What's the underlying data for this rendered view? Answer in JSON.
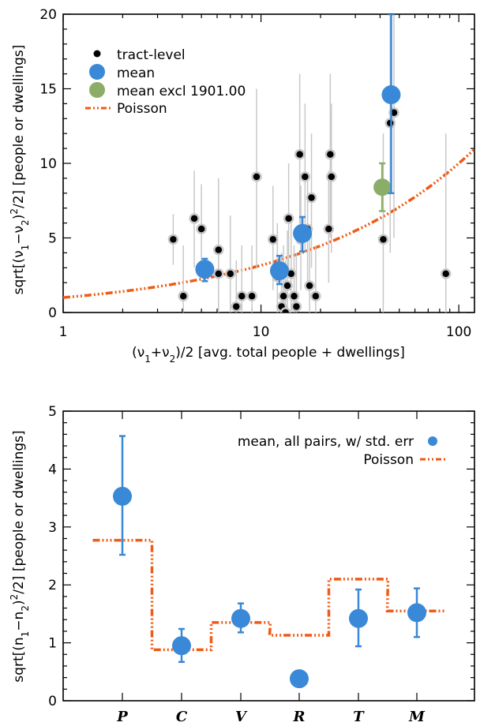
{
  "chart_data": [
    {
      "type": "scatter",
      "xlabel": "(ν₁+ν₂)/2 [avg. total people + dwellings]",
      "ylabel": "sqrt[(ν₁−ν₂)²/2] [people or dwellings]",
      "xscale": "log",
      "xlim": [
        1,
        120
      ],
      "ylim": [
        0,
        20
      ],
      "xticks": [
        {
          "value": 1,
          "label": "1"
        },
        {
          "value": 10,
          "label": "10"
        },
        {
          "value": 100,
          "label": "100"
        }
      ],
      "yticks": [
        {
          "value": 0,
          "label": "0"
        },
        {
          "value": 5,
          "label": "5"
        },
        {
          "value": 10,
          "label": "10"
        },
        {
          "value": 15,
          "label": "15"
        },
        {
          "value": 20,
          "label": "20"
        }
      ],
      "legend": {
        "placement": "top-left",
        "entries": [
          "tract-level",
          "mean",
          "mean excl 1901.00",
          "Poisson"
        ]
      },
      "colors": {
        "tract": "#000000",
        "mean": "#3a88d8",
        "excl": "#8cad68",
        "poisson": "#f05a14",
        "errbar": "#c8c8c8"
      },
      "series": [
        {
          "name": "tract-level",
          "points": [
            {
              "x": 3.6,
              "y": 4.9,
              "lo": 3.2,
              "hi": 6.6
            },
            {
              "x": 4.05,
              "y": 1.1,
              "lo": 0.0,
              "hi": 4.5
            },
            {
              "x": 4.6,
              "y": 6.3,
              "lo": 3.0,
              "hi": 9.5
            },
            {
              "x": 5.0,
              "y": 5.6,
              "lo": 2.5,
              "hi": 8.6
            },
            {
              "x": 6.1,
              "y": 4.2,
              "lo": 0.0,
              "hi": 9.0
            },
            {
              "x": 6.1,
              "y": 2.6,
              "lo": 0.0,
              "hi": 6.2
            },
            {
              "x": 7.0,
              "y": 2.6,
              "lo": 0.0,
              "hi": 6.5
            },
            {
              "x": 7.5,
              "y": 0.4,
              "lo": 0.0,
              "hi": 3.5
            },
            {
              "x": 8.0,
              "y": 1.1,
              "lo": 0.0,
              "hi": 4.5
            },
            {
              "x": 9.0,
              "y": 1.1,
              "lo": 0.0,
              "hi": 4.5
            },
            {
              "x": 9.5,
              "y": 9.1,
              "lo": 3.0,
              "hi": 15.0
            },
            {
              "x": 11.5,
              "y": 4.9,
              "lo": 1.5,
              "hi": 8.5
            },
            {
              "x": 12.1,
              "y": 2.4,
              "lo": 0.0,
              "hi": 6.0
            },
            {
              "x": 12.7,
              "y": 0.4,
              "lo": 0.0,
              "hi": 4.0
            },
            {
              "x": 13.0,
              "y": 1.1,
              "lo": 0.0,
              "hi": 4.5
            },
            {
              "x": 13.3,
              "y": 0.0,
              "lo": 0.0,
              "hi": 3.5
            },
            {
              "x": 13.6,
              "y": 1.8,
              "lo": 0.0,
              "hi": 5.5
            },
            {
              "x": 13.8,
              "y": 6.3,
              "lo": 2.5,
              "hi": 10.0
            },
            {
              "x": 14.2,
              "y": 2.6,
              "lo": 0.0,
              "hi": 6.5
            },
            {
              "x": 14.7,
              "y": 1.1,
              "lo": 0.0,
              "hi": 4.5
            },
            {
              "x": 15.1,
              "y": 0.4,
              "lo": 0.0,
              "hi": 4.0
            },
            {
              "x": 15.7,
              "y": 10.6,
              "lo": 5.0,
              "hi": 16.0
            },
            {
              "x": 15.9,
              "y": 4.9,
              "lo": 1.5,
              "hi": 8.5
            },
            {
              "x": 16.7,
              "y": 9.1,
              "lo": 4.0,
              "hi": 14.0
            },
            {
              "x": 17.2,
              "y": 5.6,
              "lo": 2.0,
              "hi": 9.0
            },
            {
              "x": 17.6,
              "y": 1.8,
              "lo": 0.0,
              "hi": 5.5
            },
            {
              "x": 18.0,
              "y": 7.7,
              "lo": 3.0,
              "hi": 12.0
            },
            {
              "x": 18.9,
              "y": 1.1,
              "lo": 0.0,
              "hi": 4.5
            },
            {
              "x": 22.0,
              "y": 5.6,
              "lo": 2.0,
              "hi": 9.5
            },
            {
              "x": 22.4,
              "y": 10.6,
              "lo": 5.0,
              "hi": 16.0
            },
            {
              "x": 22.7,
              "y": 9.1,
              "lo": 4.0,
              "hi": 14.0
            },
            {
              "x": 41.5,
              "y": 4.9,
              "lo": 0.0,
              "hi": 12.0
            },
            {
              "x": 45.0,
              "y": 12.7,
              "lo": 4.0,
              "hi": 20.0
            },
            {
              "x": 47.0,
              "y": 13.4,
              "lo": 5.0,
              "hi": 20.0
            },
            {
              "x": 86.0,
              "y": 2.6,
              "lo": 0.0,
              "hi": 12.0
            }
          ]
        },
        {
          "name": "mean",
          "points": [
            {
              "x": 5.2,
              "y": 2.9,
              "lo": 2.1,
              "hi": 3.6
            },
            {
              "x": 12.4,
              "y": 2.8,
              "lo": 1.9,
              "hi": 3.8
            },
            {
              "x": 16.2,
              "y": 5.3,
              "lo": 4.1,
              "hi": 6.4
            },
            {
              "x": 45.5,
              "y": 14.6,
              "lo": 8.0,
              "hi": 20.0
            }
          ]
        },
        {
          "name": "mean excl 1901.00",
          "points": [
            {
              "x": 41.0,
              "y": 8.4,
              "lo": 6.8,
              "hi": 10.0
            }
          ]
        },
        {
          "name": "Poisson",
          "curve": "y = sqrt(x)"
        }
      ]
    },
    {
      "type": "scatter",
      "ylabel": "sqrt[(n₁−n₂)²/2] [people or dwellings]",
      "ylim": [
        0,
        5
      ],
      "categories": [
        "P",
        "C",
        "V",
        "R",
        "T",
        "M"
      ],
      "yticks": [
        {
          "value": 0,
          "label": "0"
        },
        {
          "value": 1,
          "label": "1"
        },
        {
          "value": 2,
          "label": "2"
        },
        {
          "value": 3,
          "label": "3"
        },
        {
          "value": 4,
          "label": "4"
        },
        {
          "value": 5,
          "label": "5"
        }
      ],
      "legend": {
        "placement": "top-right",
        "entries": [
          "mean, all pairs, w/ std. err",
          "Poisson"
        ]
      },
      "series": [
        {
          "name": "mean, all pairs, w/ std. err",
          "values": [
            3.53,
            0.95,
            1.42,
            0.38,
            1.42,
            1.52
          ],
          "err_lo": [
            2.52,
            0.67,
            1.18,
            0.38,
            0.94,
            1.1
          ],
          "err_hi": [
            4.57,
            1.24,
            1.68,
            0.38,
            1.92,
            1.94
          ]
        },
        {
          "name": "Poisson",
          "values": [
            2.77,
            0.88,
            1.35,
            1.13,
            2.1,
            1.55
          ]
        }
      ]
    }
  ]
}
